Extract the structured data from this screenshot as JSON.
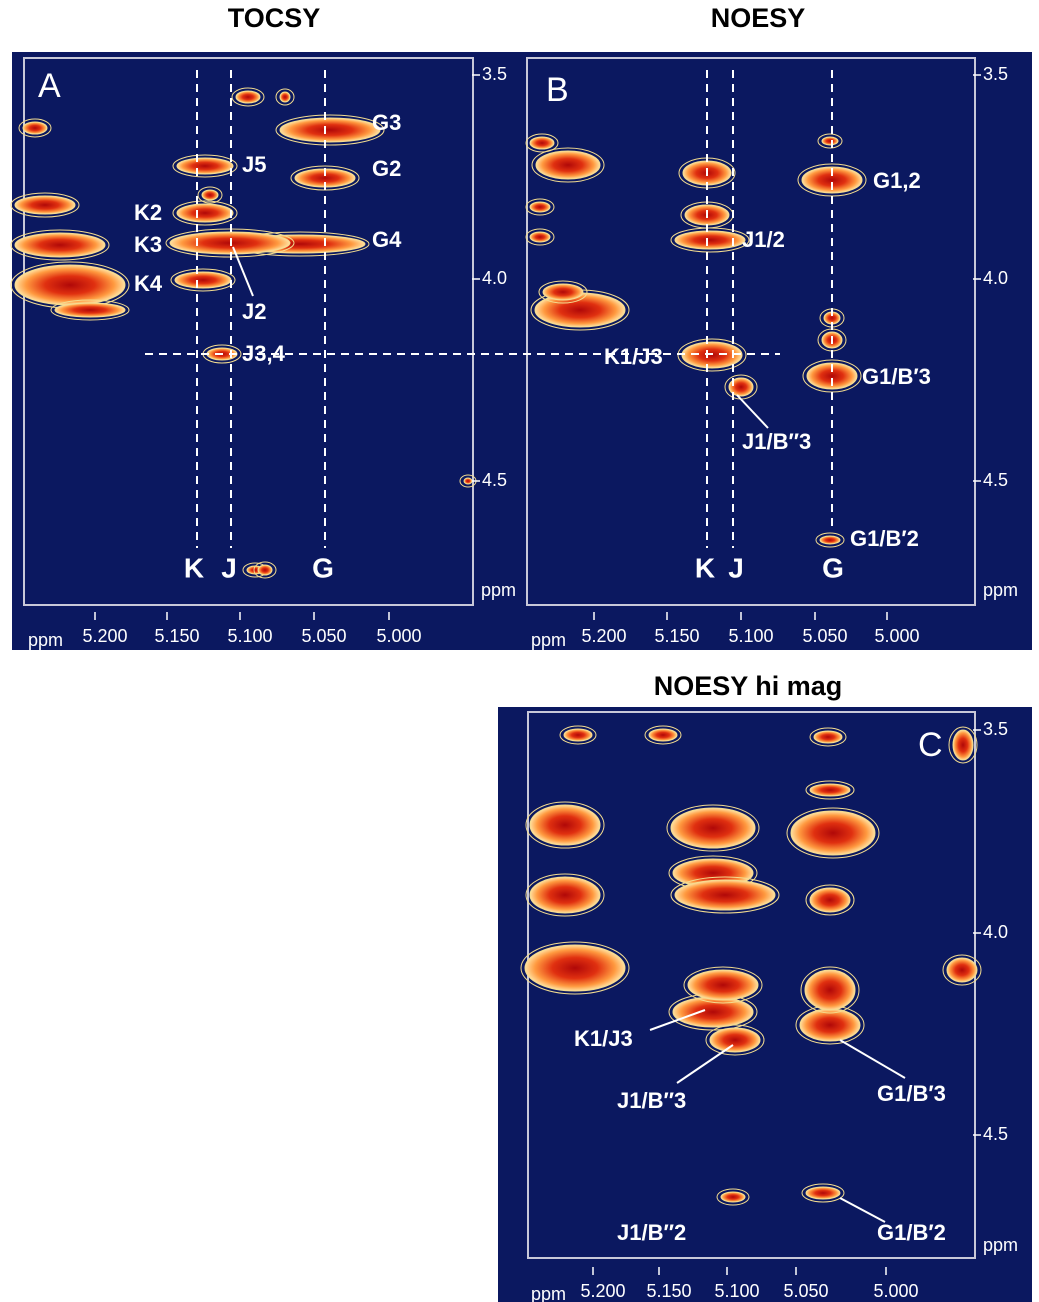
{
  "panels": [
    {
      "title": "TOCSY",
      "letter": "A",
      "peak_labels": [
        "G3",
        "G2",
        "G4",
        "J5",
        "K2",
        "K3",
        "K4",
        "J2",
        "J3,4"
      ],
      "column_labels": [
        "K",
        "J",
        "G"
      ],
      "y_ticks": [
        "3.5",
        "4.0",
        "4.5"
      ],
      "y_unit": "ppm",
      "x_ticks": [
        "5.200",
        "5.150",
        "5.100",
        "5.050",
        "5.000"
      ],
      "x_unit": "ppm"
    },
    {
      "title": "NOESY",
      "letter": "B",
      "peak_labels": [
        "G1,2",
        "J1/2",
        "K1/J3",
        "G1/B′3",
        "J1/B″3",
        "G1/B′2"
      ],
      "column_labels": [
        "K",
        "J",
        "G"
      ],
      "y_ticks": [
        "3.5",
        "4.0",
        "4.5"
      ],
      "y_unit": "ppm",
      "x_ticks": [
        "5.200",
        "5.150",
        "5.100",
        "5.050",
        "5.000"
      ],
      "x_unit": "ppm"
    },
    {
      "title": "NOESY hi mag",
      "letter": "C",
      "peak_labels": [
        "K1/J3",
        "J1/B″3",
        "G1/B′3",
        "J1/B″2",
        "G1/B′2"
      ],
      "y_ticks": [
        "3.5",
        "4.0",
        "4.5"
      ],
      "y_unit": "ppm",
      "x_ticks": [
        "5.200",
        "5.150",
        "5.100",
        "5.050",
        "5.000"
      ],
      "x_unit": "ppm"
    }
  ]
}
